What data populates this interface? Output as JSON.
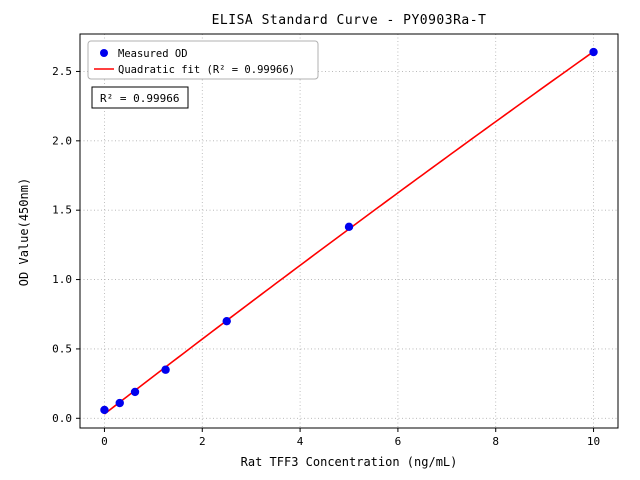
{
  "chart_data": {
    "type": "scatter",
    "title": "ELISA Standard Curve - PY0903Ra-T",
    "xlabel": "Rat TFF3 Concentration (ng/mL)",
    "ylabel": "OD Value(450nm)",
    "xlim": [
      -0.5,
      10.5
    ],
    "ylim": [
      -0.07,
      2.77
    ],
    "xticks": [
      0,
      2,
      4,
      6,
      8,
      10
    ],
    "yticks": [
      0.0,
      0.5,
      1.0,
      1.5,
      2.0,
      2.5
    ],
    "grid": "dotted",
    "legend_position": "upper left",
    "annotation": "R² = 0.99966",
    "colors": {
      "marker": "#0000ee",
      "fit_line": "#ff0000",
      "grid": "#b0b0b0",
      "axis": "#000000"
    },
    "series": [
      {
        "name": "Measured OD",
        "type": "scatter",
        "color": "#0000ee",
        "x": [
          0,
          0.3125,
          0.625,
          1.25,
          2.5,
          5,
          10
        ],
        "y": [
          0.06,
          0.11,
          0.19,
          0.35,
          0.7,
          1.38,
          2.64
        ]
      },
      {
        "name": "Quadratic fit (R² = 0.99966)",
        "type": "quadratic-fit-line",
        "color": "#ff0000",
        "x_range": [
          0,
          10
        ]
      }
    ]
  }
}
